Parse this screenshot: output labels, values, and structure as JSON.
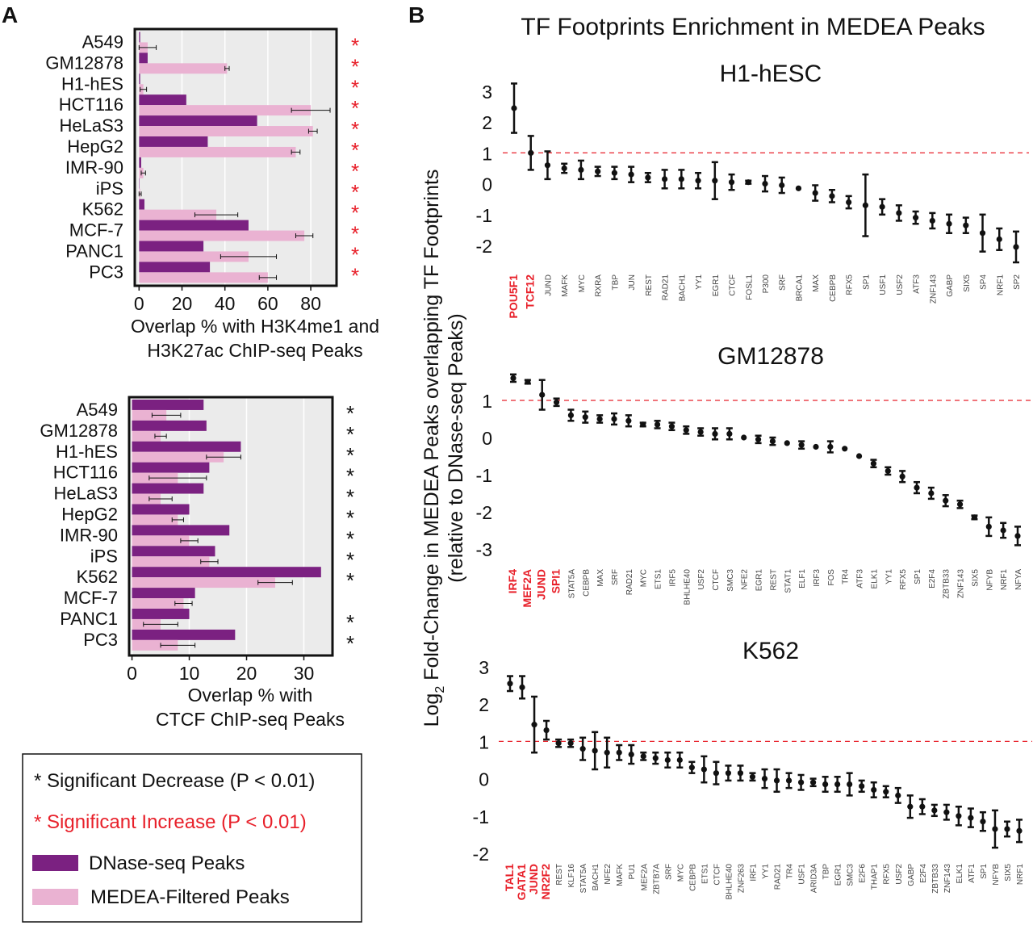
{
  "panel_labels": {
    "a": "A",
    "b": "B"
  },
  "colors": {
    "dnase": "#7b2181",
    "medea": "#eab2d2",
    "bg": "#ebebeb",
    "grid": "#ffffff",
    "red": "#e8202a",
    "black": "#111111"
  },
  "chart_data": [
    {
      "id": "a_top",
      "type": "bar",
      "orientation": "horizontal",
      "xlabel": "Overlap % with H3K4me1 and H3K27ac ChIP-seq Peaks",
      "xlabel_lines": [
        "Overlap % with H3K4me1 and",
        "H3K27ac ChIP-seq Peaks"
      ],
      "xlim": [
        -2,
        92
      ],
      "xticks": [
        0,
        20,
        40,
        60,
        80
      ],
      "categories": [
        "A549",
        "GM12878",
        "H1-hES",
        "HCT116",
        "HeLaS3",
        "HepG2",
        "IMR-90",
        "iPS",
        "K562",
        "MCF-7",
        "PANC1",
        "PC3"
      ],
      "series": [
        {
          "name": "DNase-seq Peaks",
          "values": [
            0.5,
            4,
            0.5,
            22,
            55,
            32,
            1,
            0.2,
            2.5,
            51,
            30,
            33
          ]
        },
        {
          "name": "MEDEA-Filtered Peaks",
          "values": [
            4,
            41,
            2,
            80,
            81,
            73,
            2,
            0.5,
            36,
            77,
            51,
            60
          ],
          "err": [
            4,
            1,
            1.5,
            9,
            2,
            2,
            1,
            0.5,
            10,
            4,
            13,
            4
          ]
        }
      ],
      "significance": [
        "*",
        "*",
        "*",
        "*",
        "*",
        "*",
        "*",
        "*",
        "*",
        "*",
        "*",
        "*"
      ],
      "significance_type": [
        "increase",
        "increase",
        "increase",
        "increase",
        "increase",
        "increase",
        "increase",
        "increase",
        "increase",
        "increase",
        "increase",
        "increase"
      ]
    },
    {
      "id": "a_bottom",
      "type": "bar",
      "orientation": "horizontal",
      "xlabel": "Overlap % with CTCF ChIP-seq Peaks",
      "xlabel_lines": [
        "Overlap % with",
        "CTCF ChIP-seq Peaks"
      ],
      "xlim": [
        -0.5,
        35
      ],
      "xticks": [
        0,
        10,
        20,
        30
      ],
      "categories": [
        "A549",
        "GM12878",
        "H1-hES",
        "HCT116",
        "HeLaS3",
        "HepG2",
        "IMR-90",
        "iPS",
        "K562",
        "MCF-7",
        "PANC1",
        "PC3"
      ],
      "series": [
        {
          "name": "DNase-seq Peaks",
          "values": [
            12.5,
            13,
            19,
            13.5,
            12.5,
            10,
            17,
            14.5,
            33,
            11,
            10,
            18
          ]
        },
        {
          "name": "MEDEA-Filtered Peaks",
          "values": [
            6,
            5,
            16,
            8,
            5,
            8,
            10,
            13.5,
            25,
            9,
            5,
            8
          ],
          "err": [
            2.5,
            1,
            3,
            5,
            2,
            1,
            1.5,
            1.5,
            3,
            1.5,
            3,
            3
          ]
        }
      ],
      "significance": [
        "*",
        "*",
        "*",
        "*",
        "*",
        "*",
        "*",
        "*",
        "*",
        "",
        "*",
        "*"
      ],
      "significance_type": [
        "decrease",
        "decrease",
        "decrease",
        "decrease",
        "decrease",
        "decrease",
        "decrease",
        "decrease",
        "decrease",
        "",
        "decrease",
        "decrease"
      ]
    },
    {
      "id": "b_h1",
      "type": "scatter",
      "title": "H1-hESC",
      "ylim": [
        -2.6,
        3.4
      ],
      "yticks": [
        3,
        2,
        1,
        0,
        -1,
        -2
      ],
      "threshold": 1,
      "labels": [
        "POU5F1",
        "TCF12",
        "JUND",
        "MAFK",
        "MYC",
        "RXRA",
        "TBP",
        "JUN",
        "REST",
        "RAD21",
        "BACH1",
        "YY1",
        "EGR1",
        "CTCF",
        "FOSL1",
        "P300",
        "SRF",
        "BRCA1",
        "MAX",
        "CEBPB",
        "RFX5",
        "SP1",
        "USF1",
        "USF2",
        "ATF3",
        "ZNF143",
        "GABP",
        "SIX5",
        "SP4",
        "NRF1",
        "SP2"
      ],
      "highlight": [
        true,
        true,
        false,
        false,
        false,
        false,
        false,
        false,
        false,
        false,
        false,
        false,
        false,
        false,
        false,
        false,
        false,
        false,
        false,
        false,
        false,
        false,
        false,
        false,
        false,
        false,
        false,
        false,
        false,
        false,
        false
      ],
      "values": [
        2.45,
        1.0,
        0.6,
        0.5,
        0.45,
        0.4,
        0.35,
        0.3,
        0.2,
        0.15,
        0.15,
        0.1,
        0.1,
        0.05,
        0.05,
        0.0,
        -0.05,
        -0.15,
        -0.3,
        -0.4,
        -0.6,
        -0.7,
        -0.75,
        -0.95,
        -1.1,
        -1.2,
        -1.3,
        -1.35,
        -1.6,
        -1.8,
        -2.05
      ],
      "err": [
        0.8,
        0.55,
        0.45,
        0.15,
        0.3,
        0.15,
        0.2,
        0.25,
        0.15,
        0.3,
        0.3,
        0.25,
        0.6,
        0.25,
        0.05,
        0.25,
        0.25,
        0.0,
        0.25,
        0.2,
        0.2,
        1.0,
        0.25,
        0.25,
        0.2,
        0.25,
        0.3,
        0.25,
        0.6,
        0.35,
        0.5
      ]
    },
    {
      "id": "b_gm",
      "type": "scatter",
      "title": "GM12878",
      "ylim": [
        -3.4,
        2.0
      ],
      "yticks": [
        1,
        0,
        -1,
        -2,
        -3
      ],
      "threshold": 1,
      "labels": [
        "IRF4",
        "MEF2A",
        "JUND",
        "SPI1",
        "STAT5A",
        "CEBPB",
        "MAX",
        "SRF",
        "RAD21",
        "MYC",
        "ETS1",
        "IRF5",
        "BHLHE40",
        "USF2",
        "CTCF",
        "SMC3",
        "NFE2",
        "EGR1",
        "REST",
        "STAT1",
        "ELF1",
        "IRF3",
        "FOS",
        "TR4",
        "ATF3",
        "ELK1",
        "YY1",
        "RFX5",
        "SP1",
        "E2F4",
        "ZBTB33",
        "ZNF143",
        "SIX5",
        "NFYB",
        "NRF1",
        "NFYA"
      ],
      "highlight": [
        true,
        true,
        true,
        true,
        false,
        false,
        false,
        false,
        false,
        false,
        false,
        false,
        false,
        false,
        false,
        false,
        false,
        false,
        false,
        false,
        false,
        false,
        false,
        false,
        false,
        false,
        false,
        false,
        false,
        false,
        false,
        false,
        false,
        false,
        false,
        false
      ],
      "values": [
        1.6,
        1.5,
        1.15,
        0.95,
        0.6,
        0.55,
        0.5,
        0.5,
        0.45,
        0.35,
        0.35,
        0.3,
        0.2,
        0.15,
        0.1,
        0.1,
        0.0,
        -0.05,
        -0.1,
        -0.15,
        -0.2,
        -0.25,
        -0.25,
        -0.3,
        -0.5,
        -0.7,
        -0.9,
        -1.05,
        -1.35,
        -1.5,
        -1.7,
        -1.8,
        -2.15,
        -2.4,
        -2.5,
        -2.65
      ],
      "err": [
        0.1,
        0.05,
        0.4,
        0.1,
        0.15,
        0.15,
        0.1,
        0.15,
        0.15,
        0.05,
        0.1,
        0.1,
        0.1,
        0.1,
        0.15,
        0.15,
        0.0,
        0.1,
        0.1,
        0.0,
        0.1,
        0.0,
        0.15,
        0.0,
        0.0,
        0.1,
        0.1,
        0.15,
        0.15,
        0.15,
        0.15,
        0.1,
        0.05,
        0.25,
        0.2,
        0.25
      ]
    },
    {
      "id": "b_k562",
      "type": "scatter",
      "title": "K562",
      "ylim": [
        -2.6,
        3.4
      ],
      "yticks": [
        3,
        2,
        1,
        0,
        -1,
        -2
      ],
      "threshold": 1,
      "labels": [
        "TAL1",
        "GATA1",
        "JUND",
        "NR2F2",
        "REST",
        "KLF16",
        "STAT5A",
        "BACH1",
        "NFE2",
        "MAFK",
        "PU1",
        "MEF2A",
        "ZBTB7A",
        "SRF",
        "MYC",
        "CEBPB",
        "ETS1",
        "CTCF",
        "BHLHE40",
        "ZNF263",
        "IRF1",
        "YY1",
        "RAD21",
        "TR4",
        "USF1",
        "ARID3A",
        "TBP",
        "EGR1",
        "SMC3",
        "E2F6",
        "THAP1",
        "RFX5",
        "USF2",
        "GABP",
        "E2F4",
        "ZBTB33",
        "ZNF143",
        "ELK1",
        "ATF1",
        "SP1",
        "NFYB",
        "SIX5",
        "NRF1"
      ],
      "highlight": [
        true,
        true,
        true,
        true,
        false,
        false,
        false,
        false,
        false,
        false,
        false,
        false,
        false,
        false,
        false,
        false,
        false,
        false,
        false,
        false,
        false,
        false,
        false,
        false,
        false,
        false,
        false,
        false,
        false,
        false,
        false,
        false,
        false,
        false,
        false,
        false,
        false,
        false,
        false,
        false,
        false,
        false,
        false
      ],
      "values": [
        2.55,
        2.45,
        1.45,
        1.3,
        0.95,
        0.95,
        0.8,
        0.75,
        0.7,
        0.7,
        0.65,
        0.6,
        0.55,
        0.5,
        0.5,
        0.3,
        0.25,
        0.15,
        0.15,
        0.15,
        0.05,
        0.0,
        -0.05,
        -0.05,
        -0.1,
        -0.1,
        -0.15,
        -0.15,
        -0.15,
        -0.2,
        -0.3,
        -0.35,
        -0.45,
        -0.75,
        -0.75,
        -0.85,
        -0.9,
        -1.0,
        -1.05,
        -1.15,
        -1.35,
        -1.35,
        -1.4
      ],
      "err": [
        0.2,
        0.3,
        0.75,
        0.25,
        0.1,
        0.1,
        0.3,
        0.5,
        0.4,
        0.2,
        0.25,
        0.1,
        0.15,
        0.2,
        0.2,
        0.15,
        0.35,
        0.3,
        0.2,
        0.2,
        0.1,
        0.25,
        0.3,
        0.2,
        0.2,
        0.1,
        0.2,
        0.2,
        0.3,
        0.15,
        0.2,
        0.15,
        0.2,
        0.3,
        0.2,
        0.15,
        0.2,
        0.25,
        0.25,
        0.25,
        0.5,
        0.2,
        0.3
      ]
    }
  ],
  "panel_b": {
    "title": "TF Footprints Enrichment in MEDEA Peaks",
    "ylabel_line1": "Log",
    "ylabel_sub": "2",
    "ylabel_line1_rest": " Fold-Change in MEDEA Peaks overlapping TF Footprints",
    "ylabel_line2": "(relative to DNase-seq Peaks)"
  },
  "legend": {
    "items": [
      {
        "symbol": "*",
        "label": "Significant Decrease (P < 0.01)",
        "color": "black"
      },
      {
        "symbol": "*",
        "label": "Significant Increase (P < 0.01)",
        "color": "red"
      },
      {
        "swatch": "dnase",
        "label": "DNase-seq Peaks"
      },
      {
        "swatch": "medea",
        "label": "MEDEA-Filtered Peaks"
      }
    ]
  }
}
